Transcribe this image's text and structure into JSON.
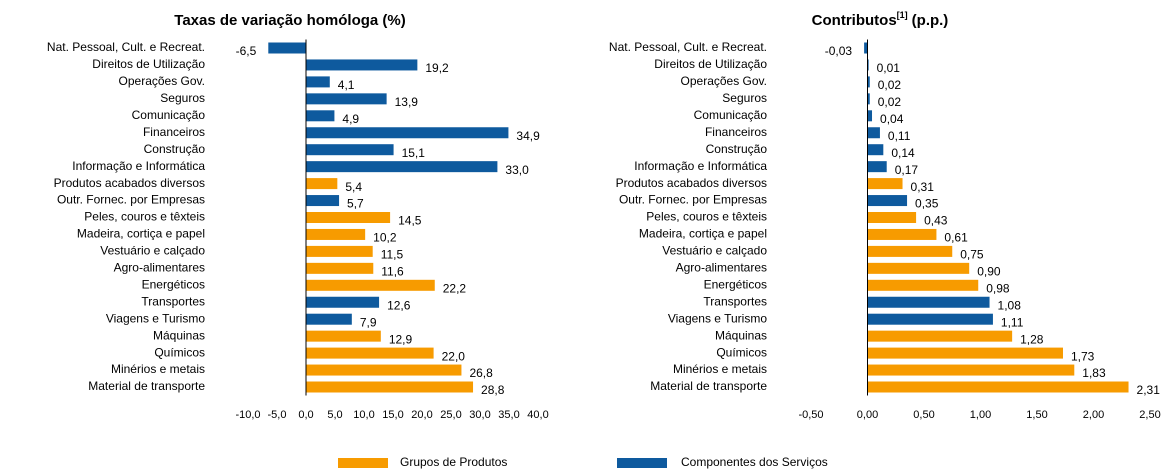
{
  "chart_data": [
    {
      "type": "bar",
      "orientation": "horizontal",
      "title": "Taxas de variação homóloga (%)",
      "categories": [
        "Nat. Pessoal, Cult. e Recreat.",
        "Direitos de Utilização",
        "Operações Gov.",
        "Seguros",
        "Comunicação",
        "Financeiros",
        "Construção",
        "Informação e Informática",
        "Produtos acabados diversos",
        "Outr. Fornec. por Empresas",
        "Peles, couros e têxteis",
        "Madeira, cortiça e papel",
        "Vestuário e calçado",
        "Agro-alimentares",
        "Energéticos",
        "Transportes",
        "Viagens e Turismo",
        "Máquinas",
        "Químicos",
        "Minérios e metais",
        "Material de transporte"
      ],
      "series": [
        {
          "name": "Grupos de Produtos",
          "color": "#F79B00",
          "values": [
            null,
            null,
            null,
            null,
            null,
            null,
            null,
            null,
            5.4,
            null,
            14.5,
            10.2,
            11.5,
            11.6,
            22.2,
            null,
            null,
            12.9,
            22.0,
            26.8,
            28.8
          ],
          "value_labels": [
            null,
            null,
            null,
            null,
            null,
            null,
            null,
            null,
            "5,4",
            null,
            "14,5",
            "10,2",
            "11,5",
            "11,6",
            "22,2",
            null,
            null,
            "12,9",
            "22,0",
            "26,8",
            "28,8"
          ]
        },
        {
          "name": "Componentes dos Serviços",
          "color": "#0E5A9E",
          "values": [
            -6.5,
            19.2,
            4.1,
            13.9,
            4.9,
            34.9,
            15.1,
            33.0,
            null,
            5.7,
            null,
            null,
            null,
            null,
            null,
            12.6,
            7.9,
            null,
            null,
            null,
            null
          ],
          "value_labels": [
            "-6,5",
            "19,2",
            "4,1",
            "13,9",
            "4,9",
            "34,9",
            "15,1",
            "33,0",
            null,
            "5,7",
            null,
            null,
            null,
            null,
            null,
            "12,6",
            "7,9",
            null,
            null,
            null,
            null
          ]
        }
      ],
      "xlim": [
        -10,
        40
      ],
      "xticks": [
        {
          "value": -10,
          "label": "-10,0"
        },
        {
          "value": -5,
          "label": "-5,0"
        },
        {
          "value": 0,
          "label": "0,0"
        },
        {
          "value": 5,
          "label": "5,0"
        },
        {
          "value": 10,
          "label": "10,0"
        },
        {
          "value": 15,
          "label": "15,0"
        },
        {
          "value": 20,
          "label": "20,0"
        },
        {
          "value": 25,
          "label": "25,0"
        },
        {
          "value": 30,
          "label": "30,0"
        },
        {
          "value": 35,
          "label": "35,0"
        },
        {
          "value": 40,
          "label": "40,0"
        }
      ]
    },
    {
      "type": "bar",
      "orientation": "horizontal",
      "title": "Contributos",
      "title_superscript": "[1]",
      "title_unit": "(p.p.)",
      "categories": [
        "Nat. Pessoal, Cult. e Recreat.",
        "Direitos de Utilização",
        "Operações Gov.",
        "Seguros",
        "Comunicação",
        "Financeiros",
        "Construção",
        "Informação e Informática",
        "Produtos acabados diversos",
        "Outr. Fornec. por Empresas",
        "Peles, couros e têxteis",
        "Madeira, cortiça e papel",
        "Vestuário e calçado",
        "Agro-alimentares",
        "Energéticos",
        "Transportes",
        "Viagens e Turismo",
        "Máquinas",
        "Químicos",
        "Minérios e metais",
        "Material de transporte"
      ],
      "series": [
        {
          "color": "#F79B00",
          "values": [
            null,
            null,
            null,
            null,
            null,
            null,
            null,
            null,
            0.31,
            null,
            0.43,
            0.61,
            0.75,
            0.9,
            0.98,
            null,
            null,
            1.28,
            1.73,
            1.83,
            2.31
          ],
          "value_labels": [
            null,
            null,
            null,
            null,
            null,
            null,
            null,
            null,
            "0,31",
            null,
            "0,43",
            "0,61",
            "0,75",
            "0,90",
            "0,98",
            null,
            null,
            "1,28",
            "1,73",
            "1,83",
            "2,31"
          ]
        },
        {
          "color": "#0E5A9E",
          "values": [
            -0.03,
            0.01,
            0.02,
            0.02,
            0.04,
            0.11,
            0.14,
            0.17,
            null,
            0.35,
            null,
            null,
            null,
            null,
            null,
            1.08,
            1.11,
            null,
            null,
            null,
            null
          ],
          "value_labels": [
            "-0,03",
            "0,01",
            "0,02",
            "0,02",
            "0,04",
            "0,11",
            "0,14",
            "0,17",
            null,
            "0,35",
            null,
            null,
            null,
            null,
            null,
            "1,08",
            "1,11",
            null,
            null,
            null,
            null
          ]
        }
      ],
      "xlim": [
        -0.5,
        2.5
      ],
      "xticks": [
        {
          "value": -0.5,
          "label": "-0,50"
        },
        {
          "value": 0,
          "label": "0,00"
        },
        {
          "value": 0.5,
          "label": "0,50"
        },
        {
          "value": 1,
          "label": "1,00"
        },
        {
          "value": 1.5,
          "label": "1,50"
        },
        {
          "value": 2,
          "label": "2,00"
        },
        {
          "value": 2.5,
          "label": "2,50"
        }
      ]
    }
  ]
}
